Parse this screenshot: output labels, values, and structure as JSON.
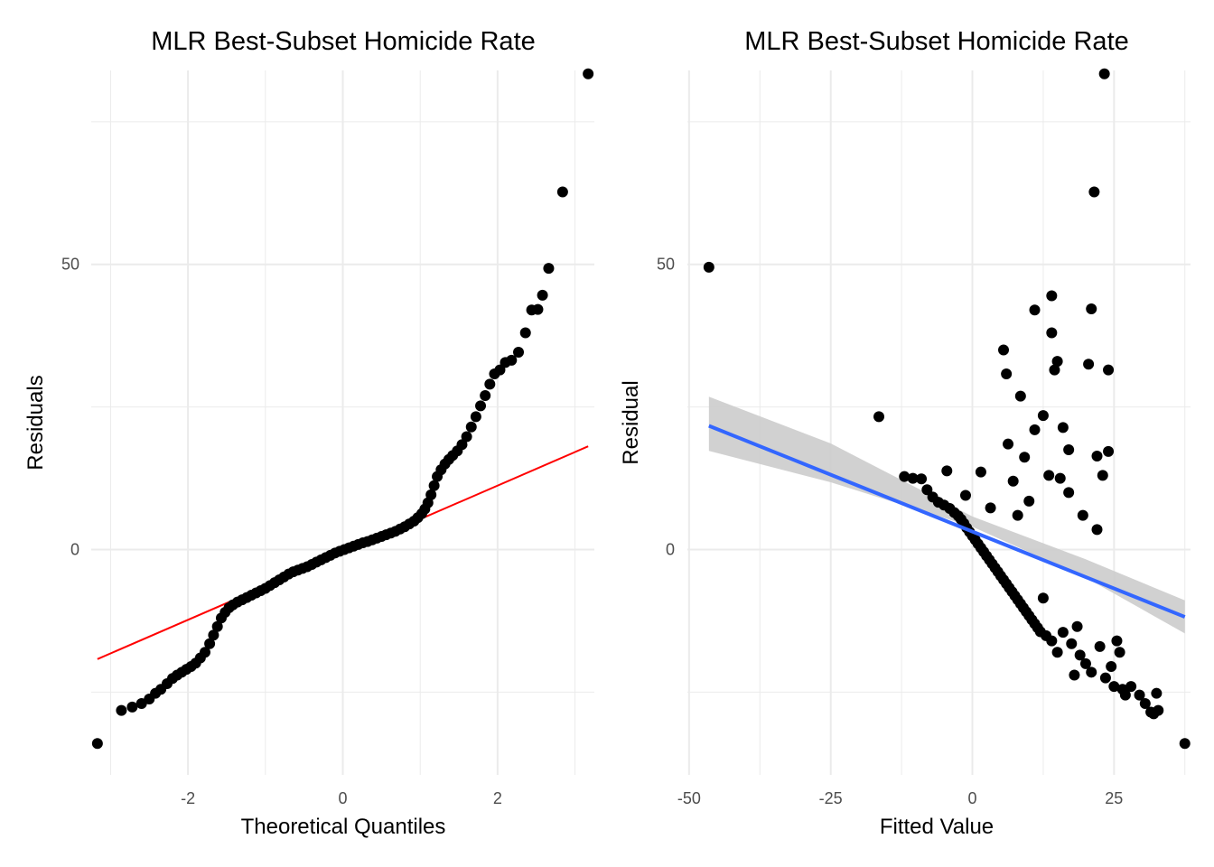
{
  "chart_data": [
    {
      "type": "scatter",
      "title": "MLR Best-Subset Homicide Rate",
      "xlabel": "Theoretical Quantiles",
      "ylabel": "Residuals",
      "xlim": [
        -3.25,
        3.25
      ],
      "ylim": [
        -39.5,
        84
      ],
      "x_ticks": [
        {
          "value": -2,
          "label": "-2"
        },
        {
          "value": 0,
          "label": "0"
        },
        {
          "value": 2,
          "label": "2"
        }
      ],
      "y_ticks": [
        {
          "value": 0,
          "label": "0"
        },
        {
          "value": 50,
          "label": "50"
        }
      ],
      "grid": true,
      "legend": "none",
      "reference_line": {
        "color": "#ff0000",
        "x": [
          -3.17,
          3.17
        ],
        "y": [
          -19.2,
          18.1
        ]
      },
      "points": [
        [
          -3.17,
          -34
        ],
        [
          -2.86,
          -28.2
        ],
        [
          -2.72,
          -27.6
        ],
        [
          -2.6,
          -27.0
        ],
        [
          -2.5,
          -26.2
        ],
        [
          -2.42,
          -25.2
        ],
        [
          -2.35,
          -24.5
        ],
        [
          -2.27,
          -23.5
        ],
        [
          -2.2,
          -22.6
        ],
        [
          -2.14,
          -22.0
        ],
        [
          -2.08,
          -21.5
        ],
        [
          -2.02,
          -21.0
        ],
        [
          -1.96,
          -20.5
        ],
        [
          -1.9,
          -19.9
        ],
        [
          -1.84,
          -19.0
        ],
        [
          -1.78,
          -18.0
        ],
        [
          -1.72,
          -16.5
        ],
        [
          -1.67,
          -15.0
        ],
        [
          -1.62,
          -13.5
        ],
        [
          -1.57,
          -12.0
        ],
        [
          -1.52,
          -11.0
        ],
        [
          -1.47,
          -10.2
        ],
        [
          -1.42,
          -9.7
        ],
        [
          -1.36,
          -9.2
        ],
        [
          -1.3,
          -8.8
        ],
        [
          -1.24,
          -8.4
        ],
        [
          -1.18,
          -8.0
        ],
        [
          -1.12,
          -7.6
        ],
        [
          -1.06,
          -7.2
        ],
        [
          -1.0,
          -6.8
        ],
        [
          -0.94,
          -6.3
        ],
        [
          -0.88,
          -5.8
        ],
        [
          -0.82,
          -5.3
        ],
        [
          -0.76,
          -4.8
        ],
        [
          -0.7,
          -4.3
        ],
        [
          -0.64,
          -3.9
        ],
        [
          -0.58,
          -3.6
        ],
        [
          -0.52,
          -3.3
        ],
        [
          -0.46,
          -3.0
        ],
        [
          -0.4,
          -2.6
        ],
        [
          -0.34,
          -2.2
        ],
        [
          -0.28,
          -1.8
        ],
        [
          -0.22,
          -1.4
        ],
        [
          -0.16,
          -1.0
        ],
        [
          -0.1,
          -0.6
        ],
        [
          -0.04,
          -0.3
        ],
        [
          0.02,
          0.0
        ],
        [
          0.08,
          0.3
        ],
        [
          0.14,
          0.6
        ],
        [
          0.2,
          0.9
        ],
        [
          0.26,
          1.2
        ],
        [
          0.32,
          1.4
        ],
        [
          0.38,
          1.7
        ],
        [
          0.44,
          2.0
        ],
        [
          0.5,
          2.3
        ],
        [
          0.56,
          2.6
        ],
        [
          0.62,
          2.9
        ],
        [
          0.68,
          3.2
        ],
        [
          0.74,
          3.6
        ],
        [
          0.8,
          4.0
        ],
        [
          0.86,
          4.5
        ],
        [
          0.92,
          5.0
        ],
        [
          0.97,
          5.6
        ],
        [
          1.02,
          6.3
        ],
        [
          1.06,
          7.1
        ],
        [
          1.1,
          8.2
        ],
        [
          1.14,
          9.6
        ],
        [
          1.18,
          11.2
        ],
        [
          1.22,
          12.8
        ],
        [
          1.27,
          14.0
        ],
        [
          1.32,
          15.0
        ],
        [
          1.37,
          15.8
        ],
        [
          1.42,
          16.5
        ],
        [
          1.48,
          17.3
        ],
        [
          1.54,
          18.4
        ],
        [
          1.6,
          19.8
        ],
        [
          1.66,
          21.5
        ],
        [
          1.72,
          23.3
        ],
        [
          1.78,
          25.2
        ],
        [
          1.84,
          27.0
        ],
        [
          1.9,
          29.0
        ],
        [
          1.96,
          30.8
        ],
        [
          2.03,
          31.5
        ],
        [
          2.1,
          32.8
        ],
        [
          2.18,
          33.2
        ],
        [
          2.27,
          34.6
        ],
        [
          2.36,
          38.0
        ],
        [
          2.44,
          42.0
        ],
        [
          2.52,
          42.1
        ],
        [
          2.58,
          44.6
        ],
        [
          2.66,
          49.3
        ],
        [
          2.84,
          62.7
        ],
        [
          3.17,
          83.4
        ]
      ]
    },
    {
      "type": "scatter",
      "title": "MLR Best-Subset Homicide Rate",
      "xlabel": "Fitted Value",
      "ylabel": "Residual",
      "xlim": [
        -50.3,
        38.5
      ],
      "ylim": [
        -39.5,
        84
      ],
      "x_ticks": [
        {
          "value": -50,
          "label": "-50"
        },
        {
          "value": -25,
          "label": "-25"
        },
        {
          "value": 0,
          "label": "0"
        },
        {
          "value": 25,
          "label": "25"
        }
      ],
      "y_ticks": [
        {
          "value": 0,
          "label": "0"
        },
        {
          "value": 50,
          "label": "50"
        }
      ],
      "grid": true,
      "legend": "none",
      "fit_line": {
        "color": "#3366ff",
        "x": [
          -46.5,
          37.5
        ],
        "y": [
          21.7,
          -11.8
        ]
      },
      "confidence_band": {
        "color": "#cccccc",
        "x": [
          -46.5,
          -25,
          0,
          20,
          37.5
        ],
        "lower": [
          17.3,
          11.8,
          4.0,
          -4.9,
          -14.7
        ],
        "upper": [
          26.8,
          18.6,
          5.8,
          -1.7,
          -8.9
        ]
      },
      "points": [
        [
          -46.5,
          49.5
        ],
        [
          -16.5,
          23.3
        ],
        [
          -12,
          12.8
        ],
        [
          -10.5,
          12.5
        ],
        [
          -9,
          12.4
        ],
        [
          -8,
          10.5
        ],
        [
          -7,
          9.2
        ],
        [
          -6,
          8.3
        ],
        [
          -5,
          7.8
        ],
        [
          -4.5,
          13.8
        ],
        [
          -4,
          7.2
        ],
        [
          -3.2,
          6.5
        ],
        [
          -2.5,
          5.9
        ],
        [
          -2,
          5.3
        ],
        [
          -1.5,
          4.6
        ],
        [
          -1.2,
          9.5
        ],
        [
          -1,
          3.8
        ],
        [
          -0.5,
          3.1
        ],
        [
          0,
          2.4
        ],
        [
          0.5,
          1.7
        ],
        [
          1,
          1.0
        ],
        [
          1.5,
          13.6
        ],
        [
          1.5,
          0.3
        ],
        [
          2,
          -0.4
        ],
        [
          2.5,
          -1.1
        ],
        [
          3,
          -1.8
        ],
        [
          3.2,
          7.3
        ],
        [
          3.5,
          -2.5
        ],
        [
          4,
          -3.2
        ],
        [
          4.5,
          -3.9
        ],
        [
          5,
          -4.6
        ],
        [
          5.5,
          35.0
        ],
        [
          5.5,
          -5.3
        ],
        [
          6,
          30.8
        ],
        [
          6,
          -6.0
        ],
        [
          6.3,
          18.5
        ],
        [
          6.5,
          -6.7
        ],
        [
          7,
          -7.4
        ],
        [
          7.2,
          12.0
        ],
        [
          7.5,
          -8.1
        ],
        [
          8,
          -8.8
        ],
        [
          8,
          6.0
        ],
        [
          8.5,
          26.9
        ],
        [
          8.5,
          -9.5
        ],
        [
          9,
          -10.2
        ],
        [
          9.2,
          16.2
        ],
        [
          9.5,
          -10.9
        ],
        [
          10,
          8.5
        ],
        [
          10,
          -11.6
        ],
        [
          10.5,
          -12.3
        ],
        [
          11,
          42.0
        ],
        [
          11,
          21.0
        ],
        [
          11,
          -13.0
        ],
        [
          11.5,
          -13.7
        ],
        [
          12,
          -14.4
        ],
        [
          12.5,
          23.5
        ],
        [
          12.5,
          -8.5
        ],
        [
          13,
          -15.1
        ],
        [
          13.5,
          13.0
        ],
        [
          14,
          44.5
        ],
        [
          14,
          38.0
        ],
        [
          14,
          -16.0
        ],
        [
          14.5,
          31.5
        ],
        [
          15,
          33.0
        ],
        [
          15,
          -18.0
        ],
        [
          15.5,
          12.5
        ],
        [
          16,
          21.4
        ],
        [
          16,
          -14.5
        ],
        [
          17,
          17.5
        ],
        [
          17,
          10.0
        ],
        [
          17.5,
          -16.5
        ],
        [
          18,
          -22.0
        ],
        [
          18.5,
          -13.5
        ],
        [
          19,
          -18.5
        ],
        [
          19.5,
          6.0
        ],
        [
          20,
          -20.0
        ],
        [
          20.5,
          32.5
        ],
        [
          21,
          42.2
        ],
        [
          21,
          -21.5
        ],
        [
          21.5,
          62.7
        ],
        [
          22,
          16.4
        ],
        [
          22,
          3.5
        ],
        [
          22.5,
          -17.0
        ],
        [
          23,
          13.0
        ],
        [
          23.3,
          83.4
        ],
        [
          23.5,
          -22.5
        ],
        [
          24,
          31.5
        ],
        [
          24,
          17.2
        ],
        [
          24.5,
          -20.5
        ],
        [
          25,
          -24.0
        ],
        [
          25.5,
          -16.0
        ],
        [
          26,
          -18.0
        ],
        [
          26.5,
          -24.5
        ],
        [
          27,
          -25.5
        ],
        [
          28,
          -24.0
        ],
        [
          29.5,
          -25.5
        ],
        [
          30.5,
          -27.0
        ],
        [
          31.5,
          -28.5
        ],
        [
          32,
          -28.8
        ],
        [
          32.5,
          -25.2
        ],
        [
          32.8,
          -28.2
        ],
        [
          37.5,
          -34.0
        ]
      ]
    }
  ]
}
